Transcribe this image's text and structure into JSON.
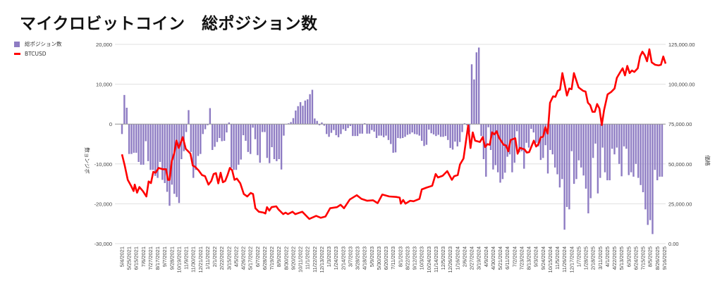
{
  "chart_data": {
    "type": "bar+line",
    "title": "マイクロビットコイン　総ポジション数",
    "legend": [
      {
        "label": "総ポジション数",
        "color": "#8e7cc3",
        "kind": "bar"
      },
      {
        "label": "BTCUSD",
        "color": "#ff0000",
        "kind": "line"
      }
    ],
    "legend_placement": "top-left",
    "ylabel_left": "数ョンジボ",
    "ylabel_right": "価格",
    "ylim_left": [
      -30000,
      20000
    ],
    "ylim_right": [
      0,
      125000
    ],
    "left_ticks": [
      "20,000",
      "10,000",
      "0",
      "-10,000",
      "-20,000",
      "-30,000"
    ],
    "left_tick_values": [
      20000,
      10000,
      0,
      -10000,
      -20000,
      -30000
    ],
    "right_ticks": [
      "125,000.00",
      "100,000.00",
      "75,000.00",
      "50,000.00",
      "25,000.00",
      "0.00"
    ],
    "x_interval_weeks": 3,
    "x_ticks": [
      "5/4/2021",
      "5/25/2021",
      "6/15/2021",
      "7/6/2021",
      "7/27/2021",
      "8/17/2021",
      "9/7/2021",
      "9/28/2021",
      "10/19/2021",
      "11/9/2021",
      "11/30/2021",
      "12/21/2021",
      "1/11/2022",
      "2/1/2022",
      "2/22/2022",
      "3/15/2022",
      "4/5/2022",
      "4/26/2022",
      "5/17/2022",
      "6/7/2022",
      "6/28/2022",
      "7/19/2022",
      "8/9/2022",
      "8/30/2022",
      "9/20/2022",
      "10/11/2022",
      "11/1/2022",
      "11/22/2022",
      "12/13/2022",
      "1/3/2023",
      "1/24/2023",
      "2/14/2023",
      "3/7/2023",
      "3/28/2023",
      "4/18/2023",
      "5/9/2023",
      "5/30/2023",
      "6/20/2023",
      "7/11/2023",
      "8/1/2023",
      "8/22/2023",
      "9/12/2023",
      "10/3/2023",
      "10/24/2023",
      "11/14/2023",
      "12/5/2023",
      "12/26/2023",
      "1/16/2024",
      "2/6/2024",
      "2/27/2024",
      "3/19/2024",
      "4/9/2024",
      "4/30/2024",
      "5/21/2024",
      "6/11/2024",
      "7/2/2024",
      "7/23/2024",
      "8/13/2024",
      "9/3/2024",
      "9/24/2024",
      "10/15/2024",
      "11/5/2024",
      "11/26/2024",
      "12/17/2024",
      "1/7/2025",
      "1/28/2025",
      "2/18/2025",
      "3/11/2025",
      "4/1/2025",
      "4/22/2025",
      "5/13/2025",
      "6/3/2025",
      "6/24/2025",
      "7/15/2025",
      "8/5/2025",
      "8/26/2025",
      "9/16/2025"
    ],
    "positions_weekly": [
      -2500,
      7300,
      4100,
      -7500,
      -7500,
      -7200,
      -7200,
      -9500,
      -10200,
      -10200,
      -4300,
      -9300,
      -11500,
      -11500,
      -13000,
      -13500,
      -9500,
      -14000,
      -14800,
      -17000,
      -20500,
      -15200,
      -17500,
      -18300,
      -19800,
      -8800,
      -6800,
      -2000,
      3500,
      -7000,
      -13500,
      -11500,
      -8000,
      -7500,
      -2500,
      -1300,
      -300,
      4000,
      -6500,
      -5700,
      -4500,
      -3500,
      -4300,
      -4200,
      -2100,
      400,
      -11000,
      -11500,
      -11500,
      -10200,
      -8900,
      -2800,
      -4200,
      -7000,
      -7500,
      -900,
      -3800,
      -7800,
      -9700,
      -2000,
      -2000,
      -8500,
      -9800,
      -5800,
      -8800,
      -9300,
      -8800,
      -11400,
      -2900,
      -100,
      200,
      500,
      1500,
      3400,
      4500,
      5500,
      4600,
      5900,
      6200,
      7500,
      8600,
      1400,
      800,
      -300,
      400,
      -400,
      -2500,
      -3200,
      -2200,
      -1500,
      -2800,
      -3300,
      -2500,
      -1300,
      -1700,
      -1000,
      -500,
      -3000,
      -3000,
      -3000,
      -2400,
      -2400,
      200,
      -2400,
      -2400,
      -1500,
      -1900,
      -3500,
      -2900,
      -2900,
      -3300,
      -2900,
      -4000,
      -5000,
      -7200,
      -7100,
      -3500,
      -3600,
      -3500,
      -3200,
      -2700,
      -2500,
      -2100,
      -2500,
      -2600,
      -2900,
      -4200,
      -5500,
      -5200,
      -1400,
      -2300,
      -2600,
      -3000,
      -2700,
      -3200,
      -3200,
      -3000,
      -4000,
      -6000,
      -6400,
      -4400,
      -5600,
      -4500,
      -2000,
      200,
      -300,
      -2000,
      15000,
      11200,
      18000,
      19200,
      -3000,
      -8800,
      -13200,
      -800,
      -6500,
      -11400,
      -10300,
      -12100,
      -14700,
      -13800,
      -12200,
      -8200,
      -7600,
      -12100,
      -9700,
      -1800,
      -7100,
      -6800,
      -11200,
      -4700,
      -5900,
      -1200,
      -2100,
      -4700,
      -5600,
      -9000,
      -8500,
      -5300,
      -12400,
      -6500,
      -7600,
      -10900,
      -12600,
      -15900,
      -13800,
      -26500,
      -20800,
      -21400,
      -6800,
      -15000,
      -13800,
      -9100,
      -10900,
      -12900,
      -16200,
      -22400,
      -18600,
      -8500,
      -4900,
      -17400,
      -13500,
      -5900,
      -12100,
      -14100,
      -14100,
      -6200,
      -7600,
      -5900,
      -10000,
      -13100,
      -5600,
      -6200,
      -12800,
      -12100,
      -13200,
      -10000,
      -13500,
      -15300,
      -17100,
      -21400,
      -25300,
      -24100,
      -27600,
      -11500,
      -14100,
      -13200,
      -13200
    ],
    "btcusd_points_week_price": [
      [
        0,
        56000
      ],
      [
        1.2,
        49000
      ],
      [
        2.5,
        40000
      ],
      [
        4,
        36000
      ],
      [
        5,
        33000
      ],
      [
        5.5,
        37000
      ],
      [
        6.5,
        32000
      ],
      [
        7.5,
        35500
      ],
      [
        9,
        33000
      ],
      [
        10.5,
        29600
      ],
      [
        11.5,
        39000
      ],
      [
        12.5,
        38000
      ],
      [
        13.5,
        45000
      ],
      [
        14.5,
        44500
      ],
      [
        15.8,
        47500
      ],
      [
        17.5,
        46700
      ],
      [
        19,
        46700
      ],
      [
        19.8,
        40000
      ],
      [
        20.5,
        40000
      ],
      [
        21.5,
        52000
      ],
      [
        22.5,
        56400
      ],
      [
        23.5,
        64600
      ],
      [
        24.5,
        60000
      ],
      [
        26.2,
        66800
      ],
      [
        27.5,
        59400
      ],
      [
        28.5,
        58000
      ],
      [
        29.5,
        56400
      ],
      [
        30.5,
        49000
      ],
      [
        31.5,
        48200
      ],
      [
        33,
        46000
      ],
      [
        34.5,
        43000
      ],
      [
        35.8,
        42300
      ],
      [
        37.3,
        37000
      ],
      [
        38.5,
        39300
      ],
      [
        39.5,
        43700
      ],
      [
        40.5,
        44200
      ],
      [
        41.5,
        37800
      ],
      [
        42.5,
        44500
      ],
      [
        43.5,
        38500
      ],
      [
        44.5,
        39300
      ],
      [
        45.5,
        43000
      ],
      [
        46.5,
        47500
      ],
      [
        47.5,
        46000
      ],
      [
        48.5,
        40000
      ],
      [
        49.5,
        40800
      ],
      [
        51,
        37800
      ],
      [
        52.5,
        31100
      ],
      [
        54,
        29600
      ],
      [
        55.5,
        31800
      ],
      [
        56.5,
        31100
      ],
      [
        57.5,
        22200
      ],
      [
        59,
        20000
      ],
      [
        61,
        19500
      ],
      [
        61.8,
        18900
      ],
      [
        62.5,
        22900
      ],
      [
        63.5,
        20700
      ],
      [
        64.5,
        22900
      ],
      [
        66.5,
        23400
      ],
      [
        67.5,
        21400
      ],
      [
        69.5,
        18500
      ],
      [
        70.5,
        19500
      ],
      [
        71.5,
        18500
      ],
      [
        73.5,
        20000
      ],
      [
        74.7,
        18500
      ],
      [
        77.7,
        20000
      ],
      [
        80.7,
        15500
      ],
      [
        83.7,
        17400
      ],
      [
        85.7,
        16200
      ],
      [
        87.7,
        17000
      ],
      [
        89.7,
        22200
      ],
      [
        92.7,
        22900
      ],
      [
        94.2,
        24400
      ],
      [
        95.7,
        22200
      ],
      [
        98.2,
        27700
      ],
      [
        101.2,
        30400
      ],
      [
        103.2,
        28100
      ],
      [
        105.7,
        26900
      ],
      [
        108.2,
        27200
      ],
      [
        110.2,
        25400
      ],
      [
        112.2,
        30800
      ],
      [
        115.2,
        29600
      ],
      [
        118.2,
        29300
      ],
      [
        119.7,
        28900
      ],
      [
        120.2,
        25100
      ],
      [
        121.2,
        27400
      ],
      [
        122.2,
        25100
      ],
      [
        124.2,
        26900
      ],
      [
        125.7,
        26600
      ],
      [
        128.2,
        28100
      ],
      [
        129.2,
        34000
      ],
      [
        131.2,
        35100
      ],
      [
        133.7,
        36300
      ],
      [
        135.2,
        43700
      ],
      [
        136.2,
        41500
      ],
      [
        138.2,
        42600
      ],
      [
        140.2,
        45500
      ],
      [
        142.2,
        40000
      ],
      [
        143.2,
        42300
      ],
      [
        144.7,
        43000
      ],
      [
        145.7,
        49700
      ],
      [
        147.2,
        53400
      ],
      [
        149.2,
        74100
      ],
      [
        150.2,
        60000
      ],
      [
        151.2,
        69800
      ],
      [
        152.2,
        64600
      ],
      [
        154.3,
        63800
      ],
      [
        155.5,
        66800
      ],
      [
        156.5,
        60600
      ],
      [
        157.5,
        62400
      ],
      [
        158.5,
        62000
      ],
      [
        159.5,
        69800
      ],
      [
        160.5,
        68600
      ],
      [
        161.5,
        70500
      ],
      [
        162.5,
        66500
      ],
      [
        164.5,
        62000
      ],
      [
        165.5,
        61600
      ],
      [
        166.5,
        57900
      ],
      [
        167.5,
        65000
      ],
      [
        169.5,
        66100
      ],
      [
        170.5,
        56400
      ],
      [
        171.5,
        60100
      ],
      [
        173.5,
        59100
      ],
      [
        174.5,
        57100
      ],
      [
        175.5,
        57400
      ],
      [
        177.5,
        64600
      ],
      [
        178.5,
        60900
      ],
      [
        179.5,
        62400
      ],
      [
        180.5,
        66800
      ],
      [
        181.5,
        67100
      ],
      [
        182.5,
        73000
      ],
      [
        183.5,
        69000
      ],
      [
        184.5,
        88400
      ],
      [
        185.8,
        92400
      ],
      [
        186.8,
        92100
      ],
      [
        187.8,
        95800
      ],
      [
        188.8,
        96600
      ],
      [
        189.8,
        107000
      ],
      [
        191.8,
        92900
      ],
      [
        192.8,
        97300
      ],
      [
        193.8,
        96900
      ],
      [
        194.8,
        107000
      ],
      [
        196.8,
        98000
      ],
      [
        198.8,
        95800
      ],
      [
        199.8,
        95400
      ],
      [
        200.8,
        88400
      ],
      [
        201.8,
        86900
      ],
      [
        202.8,
        82700
      ],
      [
        203.8,
        82700
      ],
      [
        204.8,
        87600
      ],
      [
        205.8,
        84700
      ],
      [
        206.8,
        74400
      ],
      [
        207.8,
        83900
      ],
      [
        209.3,
        93600
      ],
      [
        210.8,
        95100
      ],
      [
        212.3,
        97300
      ],
      [
        213.3,
        104000
      ],
      [
        214.8,
        107700
      ],
      [
        215.8,
        110000
      ],
      [
        216.8,
        105500
      ],
      [
        217.8,
        111500
      ],
      [
        218.8,
        107000
      ],
      [
        219.8,
        108600
      ],
      [
        220.8,
        107700
      ],
      [
        222.3,
        110000
      ],
      [
        223.3,
        117400
      ],
      [
        224.3,
        120400
      ],
      [
        225.3,
        118200
      ],
      [
        226.3,
        114400
      ],
      [
        227.3,
        121900
      ],
      [
        228.3,
        113700
      ],
      [
        229.8,
        112200
      ],
      [
        231.3,
        111800
      ],
      [
        232.3,
        112200
      ],
      [
        233.3,
        117400
      ],
      [
        234.3,
        112900
      ]
    ],
    "grid": true
  }
}
